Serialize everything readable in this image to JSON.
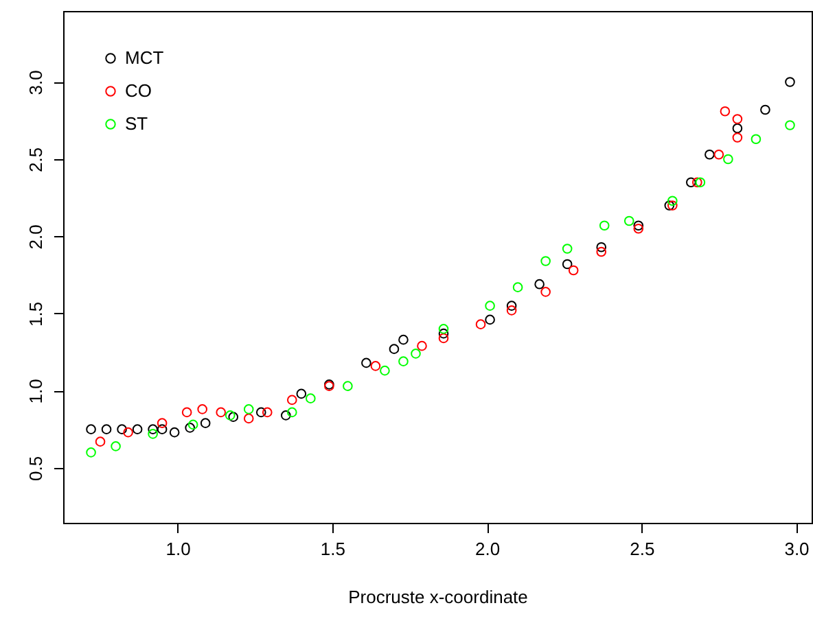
{
  "chart_data": {
    "type": "scatter",
    "xlabel": "Procruste x-coordinate",
    "xlim": [
      0.63,
      3.05
    ],
    "ylim": [
      0.144,
      3.46
    ],
    "xticks": [
      {
        "value": 1,
        "label": "1.0"
      },
      1.5,
      {
        "value": 2,
        "label": "2.0"
      },
      2.5,
      {
        "value": 3,
        "label": "3.0"
      }
    ],
    "yticks": [
      0.5,
      {
        "value": 1,
        "label": "1.0"
      },
      1.5,
      {
        "value": 2,
        "label": "2.0"
      },
      2.5,
      {
        "value": 3,
        "label": "3.0"
      }
    ],
    "grid": false,
    "legend": "top left",
    "marker": "circle",
    "series": [
      {
        "name": "MCT",
        "color": "#000000",
        "x": [
          0.72,
          0.77,
          0.82,
          0.87,
          0.92,
          0.95,
          0.99,
          1.04,
          1.09,
          1.18,
          1.27,
          1.35,
          1.4,
          1.49,
          1.61,
          1.7,
          1.73,
          1.86,
          2.01,
          2.08,
          2.17,
          2.26,
          2.37,
          2.49,
          2.59,
          2.66,
          2.72,
          2.81,
          2.9,
          2.98
        ],
        "values": [
          0.75,
          0.75,
          0.75,
          0.75,
          0.75,
          0.75,
          0.73,
          0.76,
          0.79,
          0.83,
          0.86,
          0.84,
          0.98,
          1.04,
          1.18,
          1.27,
          1.33,
          1.37,
          1.46,
          1.55,
          1.69,
          1.82,
          1.93,
          2.07,
          2.2,
          2.35,
          2.53,
          2.7,
          2.82,
          3.0
        ]
      },
      {
        "name": "CO",
        "color": "#ff0000",
        "x": [
          0.75,
          0.84,
          0.95,
          1.03,
          1.08,
          1.14,
          1.23,
          1.29,
          1.37,
          1.49,
          1.64,
          1.79,
          1.86,
          1.98,
          2.08,
          2.19,
          2.28,
          2.37,
          2.49,
          2.6,
          2.68,
          2.75,
          2.81,
          2.81,
          2.77
        ],
        "values": [
          0.67,
          0.73,
          0.79,
          0.86,
          0.88,
          0.86,
          0.82,
          0.86,
          0.94,
          1.03,
          1.16,
          1.29,
          1.34,
          1.43,
          1.52,
          1.64,
          1.78,
          1.9,
          2.05,
          2.2,
          2.35,
          2.53,
          2.64,
          2.76,
          2.81
        ]
      },
      {
        "name": "ST",
        "color": "#00ff00",
        "x": [
          0.72,
          0.8,
          0.92,
          1.05,
          1.17,
          1.23,
          1.37,
          1.43,
          1.55,
          1.67,
          1.73,
          1.77,
          1.86,
          2.01,
          2.1,
          2.19,
          2.26,
          2.38,
          2.46,
          2.6,
          2.69,
          2.78,
          2.87,
          2.98
        ],
        "values": [
          0.6,
          0.64,
          0.72,
          0.78,
          0.84,
          0.88,
          0.86,
          0.95,
          1.03,
          1.13,
          1.19,
          1.24,
          1.4,
          1.55,
          1.67,
          1.84,
          1.92,
          2.07,
          2.1,
          2.23,
          2.35,
          2.5,
          2.63,
          2.72
        ]
      }
    ]
  }
}
